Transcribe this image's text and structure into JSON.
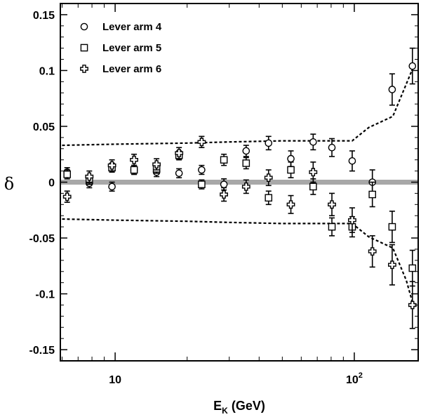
{
  "chart_data": {
    "type": "scatter",
    "title": "",
    "xlabel": "E",
    "xlabel_sub": "K",
    "xlabel_unit": " (GeV)",
    "ylabel": "δ",
    "xscale": "log",
    "xlim": [
      5.9,
      185
    ],
    "ylim": [
      -0.16,
      0.16
    ],
    "x_tick_labels": [
      {
        "value": 10,
        "base": "10",
        "exp": ""
      },
      {
        "value": 100,
        "base": "10",
        "exp": "2"
      }
    ],
    "y_ticks": [
      -0.15,
      -0.1,
      -0.05,
      0,
      0.05,
      0.1,
      0.15
    ],
    "y_tick_labels": [
      "-0.15",
      "-0.1",
      "-0.05",
      "0",
      "0.05",
      "0.1",
      "0.15"
    ],
    "legend_position": "top-left",
    "grid": false,
    "series": [
      {
        "name": "Lever arm 4",
        "marker": "circle",
        "points": [
          {
            "x": 6.3,
            "y": 0.009,
            "err": 0.004
          },
          {
            "x": 7.8,
            "y": -0.001,
            "err": 0.004
          },
          {
            "x": 9.7,
            "y": -0.004,
            "err": 0.004
          },
          {
            "x": 12.0,
            "y": 0.011,
            "err": 0.004
          },
          {
            "x": 14.9,
            "y": 0.009,
            "err": 0.004
          },
          {
            "x": 18.5,
            "y": 0.008,
            "err": 0.004
          },
          {
            "x": 23.0,
            "y": 0.011,
            "err": 0.004
          },
          {
            "x": 28.5,
            "y": -0.002,
            "err": 0.005
          },
          {
            "x": 35.3,
            "y": 0.028,
            "err": 0.005
          },
          {
            "x": 43.8,
            "y": 0.035,
            "err": 0.006
          },
          {
            "x": 54.3,
            "y": 0.021,
            "err": 0.007
          },
          {
            "x": 67.3,
            "y": 0.036,
            "err": 0.007
          },
          {
            "x": 80.6,
            "y": 0.031,
            "err": 0.008
          },
          {
            "x": 98.0,
            "y": 0.019,
            "err": 0.009
          },
          {
            "x": 119.0,
            "y": 0.0,
            "err": 0.011
          },
          {
            "x": 144.0,
            "y": 0.083,
            "err": 0.014
          },
          {
            "x": 175.0,
            "y": 0.104,
            "err": 0.016
          }
        ]
      },
      {
        "name": "Lever arm 5",
        "marker": "square",
        "points": [
          {
            "x": 6.3,
            "y": 0.007,
            "err": 0.004
          },
          {
            "x": 7.8,
            "y": 0.002,
            "err": 0.004
          },
          {
            "x": 9.7,
            "y": 0.013,
            "err": 0.004
          },
          {
            "x": 12.0,
            "y": 0.011,
            "err": 0.004
          },
          {
            "x": 14.9,
            "y": 0.012,
            "err": 0.004
          },
          {
            "x": 18.5,
            "y": 0.024,
            "err": 0.004
          },
          {
            "x": 23.0,
            "y": -0.002,
            "err": 0.004
          },
          {
            "x": 28.5,
            "y": 0.02,
            "err": 0.005
          },
          {
            "x": 35.3,
            "y": 0.017,
            "err": 0.005
          },
          {
            "x": 43.8,
            "y": -0.014,
            "err": 0.006
          },
          {
            "x": 54.3,
            "y": 0.011,
            "err": 0.007
          },
          {
            "x": 67.3,
            "y": -0.004,
            "err": 0.007
          },
          {
            "x": 80.6,
            "y": -0.04,
            "err": 0.008
          },
          {
            "x": 98.0,
            "y": -0.04,
            "err": 0.009
          },
          {
            "x": 119.0,
            "y": -0.011,
            "err": 0.011
          },
          {
            "x": 144.0,
            "y": -0.04,
            "err": 0.014
          },
          {
            "x": 175.0,
            "y": -0.077,
            "err": 0.016
          }
        ]
      },
      {
        "name": "Lever arm 6",
        "marker": "cross",
        "points": [
          {
            "x": 6.3,
            "y": -0.013,
            "err": 0.005
          },
          {
            "x": 7.8,
            "y": 0.005,
            "err": 0.005
          },
          {
            "x": 9.7,
            "y": 0.015,
            "err": 0.005
          },
          {
            "x": 12.0,
            "y": 0.02,
            "err": 0.005
          },
          {
            "x": 14.9,
            "y": 0.016,
            "err": 0.005
          },
          {
            "x": 18.5,
            "y": 0.026,
            "err": 0.005
          },
          {
            "x": 23.0,
            "y": 0.036,
            "err": 0.005
          },
          {
            "x": 28.5,
            "y": -0.011,
            "err": 0.006
          },
          {
            "x": 35.3,
            "y": -0.004,
            "err": 0.006
          },
          {
            "x": 43.8,
            "y": 0.004,
            "err": 0.007
          },
          {
            "x": 54.3,
            "y": -0.02,
            "err": 0.008
          },
          {
            "x": 67.3,
            "y": 0.009,
            "err": 0.009
          },
          {
            "x": 80.6,
            "y": -0.02,
            "err": 0.01
          },
          {
            "x": 98.0,
            "y": -0.034,
            "err": 0.011
          },
          {
            "x": 119.0,
            "y": -0.062,
            "err": 0.014
          },
          {
            "x": 144.0,
            "y": -0.074,
            "err": 0.018
          },
          {
            "x": 175.0,
            "y": -0.11,
            "err": 0.021
          }
        ]
      }
    ],
    "reference_line": {
      "y": 0,
      "color": "#a8a8a8"
    },
    "bands": {
      "style": "dotted",
      "upper": [
        {
          "x": 6.0,
          "y": 0.033
        },
        {
          "x": 10.0,
          "y": 0.034
        },
        {
          "x": 20.0,
          "y": 0.035
        },
        {
          "x": 30.0,
          "y": 0.036
        },
        {
          "x": 50.0,
          "y": 0.037
        },
        {
          "x": 70.0,
          "y": 0.037
        },
        {
          "x": 98.0,
          "y": 0.037
        },
        {
          "x": 115.0,
          "y": 0.049
        },
        {
          "x": 145.0,
          "y": 0.059
        },
        {
          "x": 165.0,
          "y": 0.088
        },
        {
          "x": 178.0,
          "y": 0.105
        }
      ],
      "lower": [
        {
          "x": 6.0,
          "y": -0.033
        },
        {
          "x": 10.0,
          "y": -0.034
        },
        {
          "x": 20.0,
          "y": -0.035
        },
        {
          "x": 30.0,
          "y": -0.036
        },
        {
          "x": 50.0,
          "y": -0.037
        },
        {
          "x": 70.0,
          "y": -0.037
        },
        {
          "x": 98.0,
          "y": -0.037
        },
        {
          "x": 115.0,
          "y": -0.049
        },
        {
          "x": 145.0,
          "y": -0.059
        },
        {
          "x": 165.0,
          "y": -0.088
        },
        {
          "x": 178.0,
          "y": -0.113
        }
      ]
    }
  }
}
